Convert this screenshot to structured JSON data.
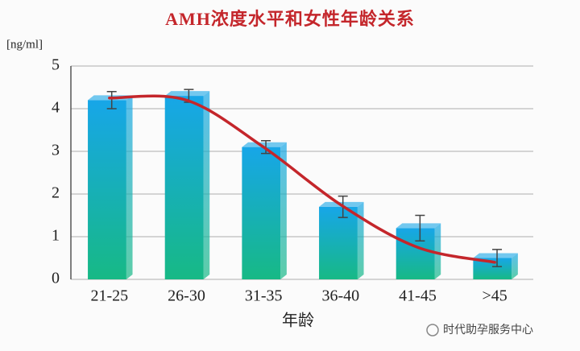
{
  "chart_data": {
    "type": "bar",
    "title": "AMH浓度水平和女性年龄关系",
    "y_label": "[ng/ml]",
    "x_label": "年龄",
    "categories": [
      "21-25",
      "26-30",
      "31-35",
      "36-40",
      "41-45",
      ">45"
    ],
    "values": [
      4.2,
      4.3,
      3.1,
      1.7,
      1.2,
      0.5
    ],
    "errors": [
      0.2,
      0.15,
      0.15,
      0.25,
      0.3,
      0.2
    ],
    "bar_colors": [
      "#17a6e8",
      "#17b985"
    ],
    "trend": {
      "color": "#c4262b",
      "values": [
        4.25,
        4.2,
        3.1,
        1.75,
        0.75,
        0.4
      ]
    },
    "ylim": [
      0,
      5
    ],
    "yticks": [
      0,
      1,
      2,
      3,
      4,
      5
    ],
    "grid": true,
    "annotation": "时代助孕服务中心"
  }
}
